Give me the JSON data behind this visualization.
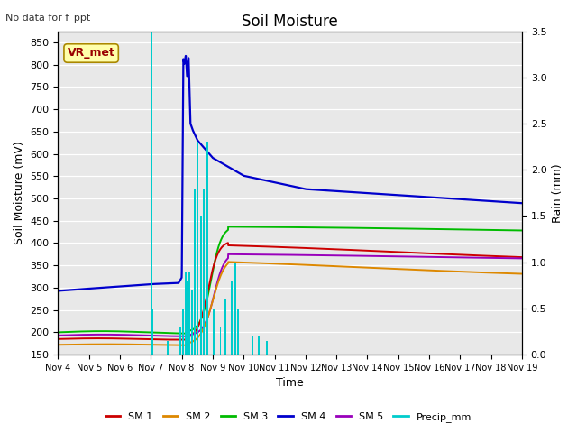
{
  "title": "Soil Moisture",
  "subtitle": "No data for f_ppt",
  "ylabel_left": "Soil Moisture (mV)",
  "ylabel_right": "Rain (mm)",
  "xlabel": "Time",
  "ylim_left": [
    150,
    875
  ],
  "ylim_right": [
    0.0,
    3.5
  ],
  "yticks_left": [
    150,
    200,
    250,
    300,
    350,
    400,
    450,
    500,
    550,
    600,
    650,
    700,
    750,
    800,
    850
  ],
  "yticks_right": [
    0.0,
    0.5,
    1.0,
    1.5,
    2.0,
    2.5,
    3.0,
    3.5
  ],
  "xtick_labels": [
    "Nov 4",
    "Nov 5",
    "Nov 6",
    "Nov 7",
    "Nov 8",
    "Nov 9",
    "Nov 10",
    "Nov 11",
    "Nov 12",
    "Nov 13",
    "Nov 14",
    "Nov 15",
    "Nov 16",
    "Nov 17",
    "Nov 18",
    "Nov 19"
  ],
  "colors": {
    "SM1": "#cc0000",
    "SM2": "#dd8800",
    "SM3": "#00bb00",
    "SM4": "#0000cc",
    "SM5": "#9900bb",
    "Precip": "#00cccc",
    "bg": "#e8e8e8"
  },
  "vr_label": "VR_met",
  "vr_box_face": "#ffffaa",
  "vr_box_edge": "#aa8800",
  "vr_text_color": "#990000",
  "precip_bars": {
    "times": [
      3.02,
      3.06,
      3.55,
      3.95,
      4.05,
      4.12,
      4.18,
      4.25,
      4.32,
      4.42,
      4.52,
      4.62,
      4.72,
      4.82,
      5.02,
      5.25,
      5.42,
      5.62,
      5.72,
      5.82,
      6.3,
      6.5,
      6.75
    ],
    "heights_mm": [
      3.5,
      0.5,
      0.15,
      0.3,
      0.5,
      0.9,
      0.8,
      0.9,
      0.7,
      1.8,
      2.3,
      1.5,
      1.8,
      2.3,
      0.5,
      0.3,
      0.6,
      0.8,
      1.0,
      0.5,
      0.2,
      0.2,
      0.15
    ]
  }
}
